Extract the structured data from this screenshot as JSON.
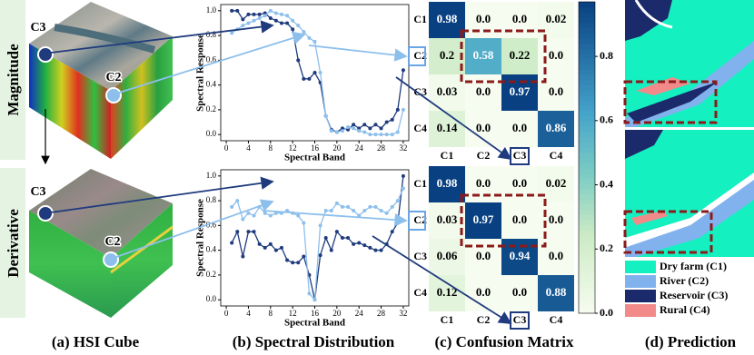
{
  "figure": {
    "row_labels": [
      "Magnitude",
      "Derivative"
    ],
    "cube_labels": [
      [
        "C3",
        "C2"
      ],
      [
        "C3",
        "C2"
      ]
    ],
    "captions": [
      "(a) HSI Cube",
      "(b) Spectral Distribution",
      "(c) Confusion Matrix",
      "(d) Prediction"
    ],
    "legend": [
      {
        "label": "Dry farm (C1)",
        "color": "#14f0c0"
      },
      {
        "label": "River (C2)",
        "color": "#82b2ee"
      },
      {
        "label": "Reservoir (C3)",
        "color": "#1b2a6b"
      },
      {
        "label": "Rural (C4)",
        "color": "#f28a8a"
      }
    ]
  },
  "chart_data": [
    {
      "type": "line",
      "xlabel": "Spectral Band",
      "ylabel": "Spectral Response",
      "x": [
        1,
        2,
        3,
        4,
        5,
        6,
        7,
        8,
        9,
        10,
        11,
        12,
        13,
        14,
        15,
        16,
        17,
        18,
        19,
        20,
        21,
        22,
        23,
        24,
        25,
        26,
        27,
        28,
        29,
        30,
        31,
        32
      ],
      "xlim": [
        -1,
        33
      ],
      "xticks": [
        0,
        4,
        8,
        12,
        16,
        20,
        24,
        28,
        32
      ],
      "ylim": [
        -0.05,
        1.05
      ],
      "yticks": [
        {
          "value": 0,
          "label": "0.0"
        },
        {
          "value": 0.2,
          "label": "0.2"
        },
        {
          "value": 0.4,
          "label": "0.4"
        },
        {
          "value": 0.6,
          "label": "0.6"
        },
        {
          "value": 0.8,
          "label": "0.8"
        },
        {
          "value": 1,
          "label": "1.0"
        }
      ],
      "series": [
        {
          "color": "#1f3b7d",
          "values": [
            1.0,
            1.0,
            0.93,
            0.97,
            0.97,
            0.97,
            0.98,
            0.94,
            0.92,
            0.9,
            0.9,
            0.85,
            0.6,
            0.45,
            0.45,
            0.5,
            0.42,
            0.15,
            0.04,
            0.02,
            0.05,
            0.04,
            0.08,
            0.05,
            0.08,
            0.05,
            0.08,
            0.05,
            0.1,
            0.12,
            0.2,
            0.52
          ]
        },
        {
          "color": "#8dbfec",
          "values": [
            0.82,
            0.85,
            0.88,
            0.9,
            0.92,
            0.94,
            0.96,
            1.0,
            0.98,
            0.97,
            0.96,
            0.92,
            0.88,
            0.83,
            0.78,
            0.75,
            0.5,
            0.15,
            0.03,
            0.02,
            0.03,
            0.06,
            0.05,
            0.03,
            0.02,
            0.0,
            0.0,
            0.0,
            0.0,
            0.0,
            0.02,
            0.2
          ]
        }
      ]
    },
    {
      "type": "line",
      "xlabel": "Spectral Band",
      "ylabel": "Spectral Response",
      "x": [
        1,
        2,
        3,
        4,
        5,
        6,
        7,
        8,
        9,
        10,
        11,
        12,
        13,
        14,
        15,
        16,
        17,
        18,
        19,
        20,
        21,
        22,
        23,
        24,
        25,
        26,
        27,
        28,
        29,
        30,
        31,
        32
      ],
      "xlim": [
        -1,
        33
      ],
      "xticks": [
        0,
        4,
        8,
        12,
        16,
        20,
        24,
        28,
        32
      ],
      "ylim": [
        -0.05,
        1.05
      ],
      "yticks": [
        {
          "value": 0,
          "label": "0.0"
        },
        {
          "value": 0.2,
          "label": "0.2"
        },
        {
          "value": 0.4,
          "label": "0.4"
        },
        {
          "value": 0.6,
          "label": "0.6"
        },
        {
          "value": 0.8,
          "label": "0.8"
        },
        {
          "value": 1,
          "label": "1.0"
        }
      ],
      "series": [
        {
          "color": "#1f3b7d",
          "values": [
            0.46,
            0.55,
            0.35,
            0.55,
            0.55,
            0.45,
            0.42,
            0.45,
            0.4,
            0.42,
            0.32,
            0.3,
            0.3,
            0.35,
            0.2,
            0.0,
            0.36,
            0.5,
            0.4,
            0.55,
            0.5,
            0.5,
            0.45,
            0.46,
            0.44,
            0.42,
            0.4,
            0.4,
            0.45,
            0.55,
            0.62,
            1.0
          ]
        },
        {
          "color": "#8dbfec",
          "values": [
            0.75,
            0.8,
            0.65,
            0.7,
            0.68,
            0.75,
            0.7,
            0.68,
            0.7,
            0.7,
            0.72,
            0.7,
            0.68,
            0.62,
            0.05,
            0.0,
            0.6,
            0.72,
            0.72,
            0.78,
            0.75,
            0.75,
            0.72,
            0.68,
            0.72,
            0.75,
            0.75,
            0.72,
            0.7,
            0.75,
            0.8,
            0.9
          ]
        }
      ]
    },
    {
      "type": "heatmap",
      "rows": [
        "C1",
        "C2",
        "C3",
        "C4"
      ],
      "columns": [
        "C1",
        "C2",
        "C3",
        "C4"
      ],
      "values": [
        [
          0.98,
          0,
          0,
          0.02
        ],
        [
          0.2,
          0.58,
          0.22,
          0
        ],
        [
          0.03,
          0,
          0.97,
          0
        ],
        [
          0.14,
          0,
          0,
          0.86
        ]
      ],
      "value_labels": [
        [
          "0.98",
          "0.0",
          "0.0",
          "0.02"
        ],
        [
          "0.2",
          "0.58",
          "0.22",
          "0.0"
        ],
        [
          "0.03",
          "0.0",
          "0.97",
          "0.0"
        ],
        [
          "0.14",
          "0.0",
          "0.0",
          "0.86"
        ]
      ],
      "zlim": [
        0,
        0.97
      ],
      "zticks": [
        {
          "value": 0,
          "label": "0.0"
        },
        0.2,
        0.4,
        0.6,
        0.8
      ]
    },
    {
      "type": "heatmap",
      "rows": [
        "C1",
        "C2",
        "C3",
        "C4"
      ],
      "columns": [
        "C1",
        "C2",
        "C3",
        "C4"
      ],
      "values": [
        [
          0.98,
          0,
          0,
          0.02
        ],
        [
          0.03,
          0.97,
          0,
          0
        ],
        [
          0.06,
          0,
          0.94,
          0
        ],
        [
          0.12,
          0,
          0,
          0.88
        ]
      ],
      "value_labels": [
        [
          "0.98",
          "0.0",
          "0.0",
          "0.02"
        ],
        [
          "0.03",
          "0.97",
          "0.0",
          "0.0"
        ],
        [
          "0.06",
          "0.0",
          "0.94",
          "0.0"
        ],
        [
          "0.12",
          "0.0",
          "0.0",
          "0.88"
        ]
      ],
      "zlim": [
        0,
        0.97
      ]
    }
  ]
}
